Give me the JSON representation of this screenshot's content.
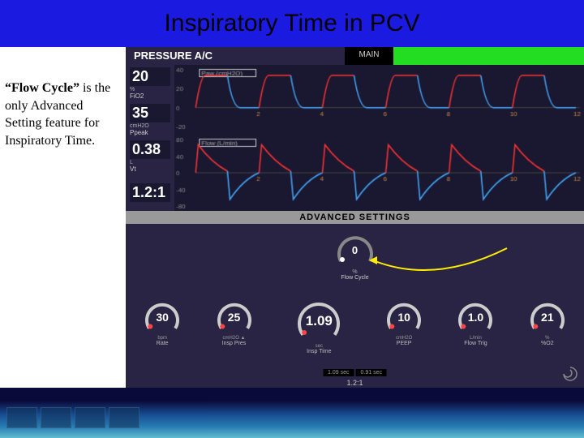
{
  "title": "Inspiratory Time in PCV",
  "side_text_bold": "“Flow Cycle”",
  "side_text_rest": " is the only Advanced Setting feature for Inspiratory Time.",
  "vent": {
    "mode": "PRESSURE A/C",
    "main_tab": "MAIN",
    "params": [
      {
        "value": "20",
        "unit": "%",
        "name": "FiO2"
      },
      {
        "value": "35",
        "unit": "cmH2O",
        "name": "Ppeak"
      },
      {
        "value": "0.38",
        "unit": "L",
        "name": "Vt"
      },
      {
        "value": "1.2:1",
        "unit": "",
        "name": ""
      }
    ],
    "pressure_wave": {
      "label": "Paw (cmH2O)",
      "yticks": [
        "40",
        "20",
        "0",
        "-20"
      ],
      "xticks": [
        "2",
        "4",
        "6",
        "8",
        "10",
        "12"
      ],
      "color_up": "#ff3333",
      "color_down": "#44aaff"
    },
    "flow_wave": {
      "label": "Flow (L/min)",
      "yticks": [
        "80",
        "40",
        "0",
        "-40",
        "-80"
      ],
      "xticks": [
        "2",
        "4",
        "6",
        "8",
        "10",
        "12"
      ],
      "color_up": "#ff3333",
      "color_down": "#44aaff"
    },
    "adv_label": "ADVANCED SETTINGS",
    "flow_cycle": {
      "value": "0",
      "unit": "%",
      "name": "Flow Cycle"
    },
    "dials": [
      {
        "value": "30",
        "unit": "bpm",
        "name": "Rate",
        "big": false
      },
      {
        "value": "25",
        "unit": "cmH2O ▲",
        "name": "Insp Pres",
        "big": false
      },
      {
        "value": "1.09",
        "unit": "sec",
        "name": "Insp Time",
        "big": true
      },
      {
        "value": "10",
        "unit": "cmH2O",
        "name": "PEEP",
        "big": false
      },
      {
        "value": "1.0",
        "unit": "L/min",
        "name": "Flow Trig",
        "big": false
      },
      {
        "value": "21",
        "unit": "%",
        "name": "%O2",
        "big": false
      }
    ],
    "time_segs": [
      "1.09 sec",
      "0.91 sec"
    ],
    "ratio": "1.2:1",
    "colors": {
      "bg": "#2a2444",
      "dial_fg": "#e0e0e0",
      "dial_accent": "#ff4444",
      "arrow": "#ffee00"
    }
  }
}
